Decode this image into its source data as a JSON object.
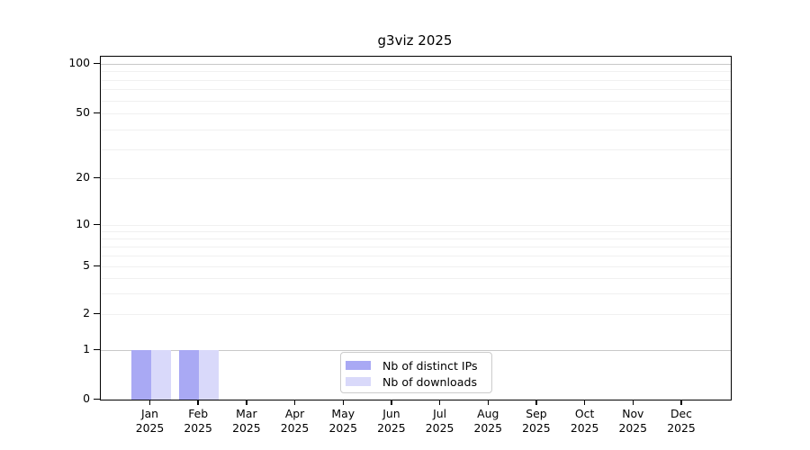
{
  "figure": {
    "background": "#ffffff"
  },
  "chart_data": {
    "type": "bar",
    "title": "g3viz 2025",
    "categories": [
      "Jan",
      "Feb",
      "Mar",
      "Apr",
      "May",
      "Jun",
      "Jul",
      "Aug",
      "Sep",
      "Oct",
      "Nov",
      "Dec"
    ],
    "year_label": "2025",
    "series": [
      {
        "name": "Nb of distinct IPs",
        "color": "#a9a9f4",
        "values": [
          1,
          1,
          0,
          0,
          0,
          0,
          0,
          0,
          0,
          0,
          0,
          0
        ]
      },
      {
        "name": "Nb of downloads",
        "color": "#d9d9fa",
        "values": [
          1,
          1,
          0,
          0,
          0,
          0,
          0,
          0,
          0,
          0,
          0,
          0
        ]
      }
    ],
    "yticks": [
      0,
      1,
      2,
      5,
      10,
      20,
      50,
      100
    ],
    "minor_gridline_values": [
      3,
      4,
      6,
      7,
      8,
      9,
      30,
      40,
      60,
      70,
      80,
      90
    ],
    "yscale": "log above 1, linear 0-1",
    "ylim": [
      0,
      112
    ],
    "grid": "horizontal",
    "legend_position": "lower center inside",
    "xlabel": "",
    "ylabel": ""
  },
  "colors": {
    "grid_minor": "#f0f0f0",
    "grid_major": "#c8c8c8",
    "axis": "#000000",
    "legend_border": "#cccccc",
    "text": "#000000"
  }
}
